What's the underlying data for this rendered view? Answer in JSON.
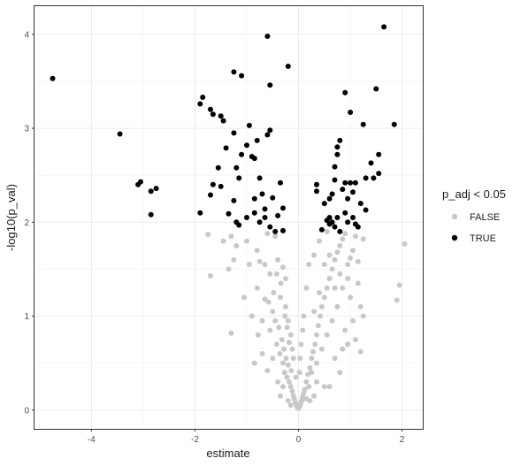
{
  "chart_data": {
    "type": "scatter",
    "title": "",
    "xlabel": "estimate",
    "ylabel": "-log10(p_val)",
    "xlim": [
      -5.1,
      2.4
    ],
    "ylim": [
      -0.2,
      4.3
    ],
    "x_ticks": [
      -4,
      -2,
      0,
      2
    ],
    "y_ticks": [
      0,
      1,
      2,
      3,
      4
    ],
    "x_tick_labels": [
      "-4",
      "-2",
      "0",
      "2"
    ],
    "y_tick_labels": [
      "0",
      "1",
      "2",
      "3",
      "4"
    ],
    "grid": true,
    "legend": {
      "title": "p_adj < 0.05",
      "position": "right",
      "entries": [
        {
          "label": "FALSE",
          "color": "#c8c8c8"
        },
        {
          "label": "TRUE",
          "color": "#000000"
        }
      ]
    },
    "series": [
      {
        "name": "FALSE",
        "color": "#c8c8c8",
        "points": [
          [
            -1.75,
            1.87
          ],
          [
            -1.45,
            1.8
          ],
          [
            -1.3,
            1.85
          ],
          [
            -1.2,
            1.75
          ],
          [
            -1.0,
            1.8
          ],
          [
            -0.8,
            1.7
          ],
          [
            -0.6,
            1.88
          ],
          [
            -0.45,
            1.85
          ],
          [
            -1.7,
            1.43
          ],
          [
            -1.35,
            1.5
          ],
          [
            -1.25,
            1.6
          ],
          [
            -0.95,
            1.55
          ],
          [
            -0.75,
            1.58
          ],
          [
            -0.65,
            1.55
          ],
          [
            -0.55,
            1.45
          ],
          [
            -0.4,
            1.6
          ],
          [
            -0.3,
            1.52
          ],
          [
            -0.25,
            1.4
          ],
          [
            -1.3,
            0.82
          ],
          [
            -0.8,
            1.3
          ],
          [
            -0.65,
            1.18
          ],
          [
            -0.5,
            1.05
          ],
          [
            -0.45,
            0.95
          ],
          [
            -0.38,
            0.88
          ],
          [
            -0.32,
            0.75
          ],
          [
            -0.28,
            0.65
          ],
          [
            -0.24,
            0.55
          ],
          [
            -0.2,
            0.48
          ],
          [
            -0.55,
            0.85
          ],
          [
            -0.42,
            0.7
          ],
          [
            -0.36,
            0.6
          ],
          [
            -0.3,
            0.5
          ],
          [
            -0.27,
            0.4
          ],
          [
            -0.22,
            0.35
          ],
          [
            -0.18,
            0.3
          ],
          [
            -0.15,
            0.25
          ],
          [
            -0.12,
            0.2
          ],
          [
            -0.1,
            0.15
          ],
          [
            -0.08,
            0.12
          ],
          [
            -0.06,
            0.08
          ],
          [
            -0.04,
            0.05
          ],
          [
            -0.02,
            0.03
          ],
          [
            0.0,
            0.02
          ],
          [
            0.02,
            0.04
          ],
          [
            0.04,
            0.06
          ],
          [
            0.06,
            0.1
          ],
          [
            0.08,
            0.14
          ],
          [
            0.1,
            0.18
          ],
          [
            -0.6,
            0.42
          ],
          [
            -0.5,
            0.55
          ],
          [
            -0.35,
            1.2
          ],
          [
            -0.25,
            1.1
          ],
          [
            -0.2,
            0.95
          ],
          [
            -0.15,
            0.8
          ],
          [
            -0.12,
            0.65
          ],
          [
            -0.7,
            0.6
          ],
          [
            -0.85,
            0.5
          ],
          [
            -0.4,
            0.3
          ],
          [
            0.12,
            0.22
          ],
          [
            0.15,
            0.3
          ],
          [
            0.18,
            0.38
          ],
          [
            0.22,
            0.45
          ],
          [
            0.25,
            0.55
          ],
          [
            0.28,
            0.62
          ],
          [
            0.32,
            0.7
          ],
          [
            0.35,
            0.8
          ],
          [
            0.38,
            0.9
          ],
          [
            0.42,
            1.0
          ],
          [
            0.45,
            1.1
          ],
          [
            0.5,
            1.2
          ],
          [
            0.55,
            1.3
          ],
          [
            0.6,
            1.4
          ],
          [
            0.65,
            1.5
          ],
          [
            0.7,
            1.6
          ],
          [
            0.75,
            1.68
          ],
          [
            0.8,
            1.75
          ],
          [
            0.85,
            1.82
          ],
          [
            0.9,
            1.88
          ],
          [
            0.3,
            1.05
          ],
          [
            0.4,
            1.25
          ],
          [
            0.5,
            1.55
          ],
          [
            0.6,
            1.65
          ],
          [
            0.7,
            1.3
          ],
          [
            0.8,
            1.45
          ],
          [
            0.95,
            1.55
          ],
          [
            1.05,
            1.7
          ],
          [
            1.15,
            1.35
          ],
          [
            1.25,
            1.0
          ],
          [
            1.1,
            1.85
          ],
          [
            1.0,
            1.62
          ],
          [
            0.75,
            1.1
          ],
          [
            0.65,
            0.95
          ],
          [
            0.55,
            0.8
          ],
          [
            0.45,
            0.65
          ],
          [
            0.35,
            0.5
          ],
          [
            0.25,
            0.4
          ],
          [
            0.2,
            0.25
          ],
          [
            0.15,
            0.12
          ],
          [
            1.1,
            0.75
          ],
          [
            1.2,
            0.62
          ],
          [
            0.9,
            0.85
          ],
          [
            0.8,
            0.4
          ],
          [
            0.6,
            0.25
          ],
          [
            0.5,
            0.25
          ],
          [
            1.05,
            0.95
          ],
          [
            1.2,
            1.1
          ],
          [
            1.25,
            1.82
          ],
          [
            1.15,
            1.58
          ],
          [
            0.55,
            1.9
          ],
          [
            0.4,
            1.8
          ],
          [
            0.3,
            1.65
          ],
          [
            0.2,
            1.55
          ],
          [
            0.15,
            1.3
          ],
          [
            0.1,
            1.0
          ],
          [
            0.08,
            0.85
          ],
          [
            0.05,
            0.7
          ],
          [
            0.03,
            0.55
          ],
          [
            0.02,
            0.4
          ],
          [
            1.9,
            1.17
          ],
          [
            1.95,
            1.33
          ],
          [
            2.05,
            1.77
          ],
          [
            1.0,
            1.2
          ],
          [
            0.85,
            1.3
          ],
          [
            0.95,
            1.4
          ],
          [
            -0.1,
            0.55
          ],
          [
            -0.05,
            0.35
          ],
          [
            -0.14,
            0.42
          ],
          [
            -0.18,
            0.72
          ],
          [
            -0.22,
            0.88
          ],
          [
            -0.26,
            1.0
          ],
          [
            -0.34,
            1.35
          ],
          [
            -0.42,
            1.45
          ],
          [
            -0.48,
            1.25
          ],
          [
            -0.58,
            1.15
          ],
          [
            -0.7,
            0.95
          ],
          [
            -0.78,
            0.8
          ],
          [
            -0.9,
            1.0
          ],
          [
            -1.05,
            1.2
          ],
          [
            0.7,
            0.55
          ],
          [
            0.85,
            0.65
          ],
          [
            0.95,
            0.7
          ],
          [
            0.3,
            0.15
          ],
          [
            0.22,
            0.1
          ],
          [
            0.35,
            0.3
          ],
          [
            -0.3,
            0.25
          ],
          [
            -0.35,
            0.15
          ],
          [
            -0.2,
            0.1
          ],
          [
            -0.15,
            0.05
          ]
        ]
      },
      {
        "name": "TRUE",
        "color": "#000000",
        "points": [
          [
            -4.75,
            3.53
          ],
          [
            -3.45,
            2.94
          ],
          [
            -3.1,
            2.4
          ],
          [
            -3.05,
            2.43
          ],
          [
            -2.85,
            2.08
          ],
          [
            -2.75,
            2.36
          ],
          [
            -2.85,
            2.33
          ],
          [
            -1.9,
            3.26
          ],
          [
            -1.85,
            3.33
          ],
          [
            -1.7,
            3.2
          ],
          [
            -1.65,
            3.15
          ],
          [
            -1.5,
            3.13
          ],
          [
            -1.45,
            3.08
          ],
          [
            -1.25,
            3.6
          ],
          [
            -1.1,
            3.56
          ],
          [
            -0.6,
            3.98
          ],
          [
            -0.55,
            3.46
          ],
          [
            -0.2,
            3.66
          ],
          [
            -1.9,
            2.1
          ],
          [
            -1.7,
            2.29
          ],
          [
            -1.65,
            2.4
          ],
          [
            -1.55,
            2.58
          ],
          [
            -1.5,
            2.38
          ],
          [
            -1.4,
            2.79
          ],
          [
            -1.35,
            2.09
          ],
          [
            -1.25,
            2.23
          ],
          [
            -1.25,
            2.95
          ],
          [
            -1.2,
            2.58
          ],
          [
            -1.15,
            2.47
          ],
          [
            -1.1,
            2.72
          ],
          [
            -1.0,
            2.82
          ],
          [
            -0.95,
            3.03
          ],
          [
            -0.9,
            2.7
          ],
          [
            -0.8,
            2.87
          ],
          [
            -0.75,
            2.47
          ],
          [
            -0.65,
            2.14
          ],
          [
            -0.6,
            2.93
          ],
          [
            -0.55,
            2.98
          ],
          [
            -0.5,
            2.26
          ],
          [
            -0.4,
            2.07
          ],
          [
            -0.35,
            2.42
          ],
          [
            -0.3,
            2.15
          ],
          [
            -0.3,
            1.91
          ],
          [
            -1.2,
            2.0
          ],
          [
            -1.0,
            2.05
          ],
          [
            -0.85,
            2.1
          ],
          [
            -0.75,
            2.0
          ],
          [
            -0.65,
            2.05
          ],
          [
            -0.55,
            1.95
          ],
          [
            -0.45,
            1.9
          ],
          [
            -0.85,
            2.68
          ],
          [
            -0.7,
            2.3
          ],
          [
            -0.85,
            2.25
          ],
          [
            -1.15,
            1.97
          ],
          [
            0.35,
            2.33
          ],
          [
            0.35,
            2.4
          ],
          [
            0.45,
            1.92
          ],
          [
            0.6,
            2.05
          ],
          [
            0.65,
            2.0
          ],
          [
            0.6,
            2.25
          ],
          [
            0.7,
            2.45
          ],
          [
            0.7,
            2.59
          ],
          [
            0.75,
            2.72
          ],
          [
            0.75,
            2.8
          ],
          [
            0.8,
            2.87
          ],
          [
            0.85,
            2.35
          ],
          [
            0.9,
            3.38
          ],
          [
            0.9,
            2.42
          ],
          [
            1.0,
            3.17
          ],
          [
            1.0,
            2.42
          ],
          [
            1.05,
            2.32
          ],
          [
            1.1,
            2.42
          ],
          [
            1.2,
            2.2
          ],
          [
            1.25,
            3.04
          ],
          [
            1.3,
            2.13
          ],
          [
            1.3,
            2.47
          ],
          [
            1.4,
            2.63
          ],
          [
            1.45,
            2.47
          ],
          [
            1.5,
            3.42
          ],
          [
            1.55,
            2.52
          ],
          [
            1.55,
            2.72
          ],
          [
            1.65,
            4.08
          ],
          [
            1.85,
            3.04
          ],
          [
            0.55,
            2.02
          ],
          [
            0.6,
            1.98
          ],
          [
            0.7,
            1.95
          ],
          [
            0.75,
            2.05
          ],
          [
            0.8,
            1.9
          ],
          [
            0.9,
            2.1
          ],
          [
            0.95,
            2.0
          ],
          [
            1.05,
            2.05
          ],
          [
            1.1,
            1.98
          ],
          [
            1.15,
            1.95
          ],
          [
            0.5,
            2.2
          ],
          [
            0.65,
            2.3
          ],
          [
            0.95,
            2.25
          ]
        ]
      }
    ]
  }
}
